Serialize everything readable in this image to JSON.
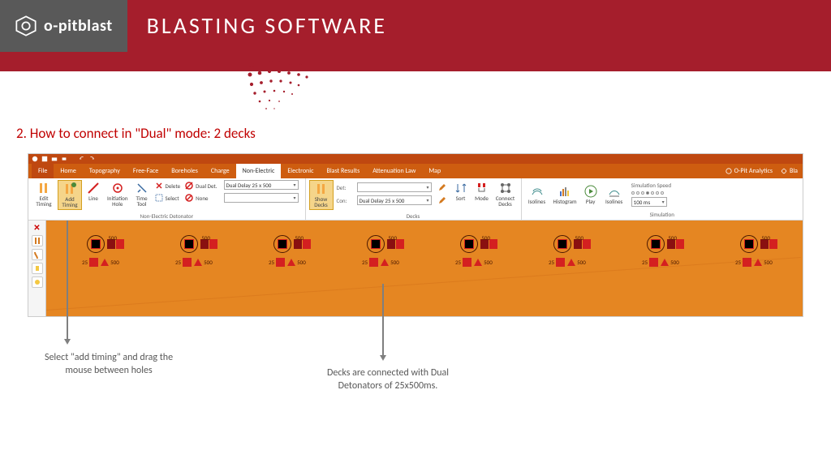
{
  "banner": {
    "logo_text": "o-pitblast",
    "title": "BLASTING SOFTWARE",
    "logo_bg": "#595959",
    "banner_bg": "#a51e2c"
  },
  "section": {
    "title": "2. How to connect in \"Dual\" mode: 2 decks",
    "title_color": "#c00000"
  },
  "ribbon": {
    "tabs": [
      "File",
      "Home",
      "Topography",
      "Free-Face",
      "Boreholes",
      "Charge",
      "Non-Electric",
      "Electronic",
      "Blast Results",
      "Attenuation Law",
      "Map"
    ],
    "active_tab": "Non-Electric",
    "right_items": [
      "O-Pit Analytics",
      "Bla"
    ],
    "group1_label": "Non-Electric Detonator",
    "group2_label": "Decks",
    "group3_label": "Simulation",
    "btn_edit_timing": "Edit\nTiming",
    "btn_add_timing": "Add\nTiming",
    "btn_line": "Line",
    "btn_init_hole": "Initiation\nHole",
    "btn_time_tool": "Time\nTool",
    "mini_delete": "Delete",
    "mini_select": "Select",
    "mini_dualdet": "Dual Det.",
    "mini_none": "None",
    "dd1_value": "Dual Delay 25 x 500",
    "btn_show_decks": "Show\nDecks",
    "mini_det": "Det:",
    "mini_con": "Con:",
    "dd2_value": "Dual Delay 25 x 500",
    "btn_sort": "Sort",
    "btn_mode": "Mode",
    "btn_connect_decks": "Connect\nDecks",
    "btn_isolines": "Isolines",
    "btn_histogram": "Histogram",
    "btn_play": "Play",
    "btn_isotimes": "Isolines",
    "sim_speed_label": "Simulation Speed",
    "sim_speed_value": "100 ms"
  },
  "canvas": {
    "bg": "#e58622",
    "hole_count": 8,
    "label_500": "500",
    "label_25": "25"
  },
  "callouts": {
    "left": "Select \"add timing\" and drag the\nmouse between holes",
    "right": "Decks are connected with Dual\nDetonators of 25x500ms."
  }
}
